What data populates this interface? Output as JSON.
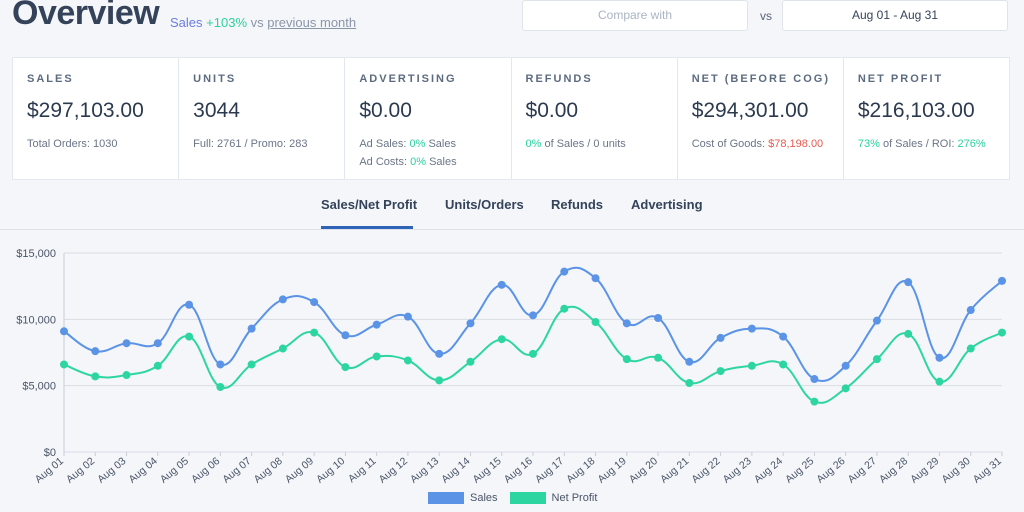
{
  "header": {
    "title": "Overview",
    "subtitle_label": "Sales",
    "subtitle_change": "+103%",
    "subtitle_vs": "vs",
    "subtitle_period": "previous month",
    "compare_placeholder": "Compare with",
    "vs_label": "vs",
    "date_range": "Aug 01 - Aug 31"
  },
  "cards": {
    "sales": {
      "label": "SALES",
      "value": "$297,103.00",
      "detail": "Total Orders: 1030"
    },
    "units": {
      "label": "UNITS",
      "value": "3044",
      "detail": "Full: 2761 / Promo: 283"
    },
    "advertising": {
      "label": "ADVERTISING",
      "value": "$0.00",
      "ad_sales_prefix": "Ad Sales:",
      "ad_sales_pct": "0%",
      "ad_sales_suffix": "Sales",
      "ad_costs_prefix": "Ad Costs:",
      "ad_costs_pct": "0%",
      "ad_costs_suffix": "Sales"
    },
    "refunds": {
      "label": "REFUNDS",
      "value": "$0.00",
      "pct": "0%",
      "detail_suffix": "of Sales / 0 units"
    },
    "net": {
      "label": "NET (BEFORE COG)",
      "value": "$294,301.00",
      "cog_prefix": "Cost of Goods:",
      "cog_value": "$78,198.00"
    },
    "profit": {
      "label": "NET PROFIT",
      "value": "$216,103.00",
      "pct": "73%",
      "mid": "of Sales / ROI:",
      "roi": "276%"
    }
  },
  "tabs": [
    "Sales/Net Profit",
    "Units/Orders",
    "Refunds",
    "Advertising"
  ],
  "active_tab": 0,
  "colors": {
    "sales": "#5b93e6",
    "profit": "#2dd6a0",
    "accent": "#2f63b8"
  },
  "chart_data": {
    "type": "line",
    "x": [
      "Aug 01",
      "Aug 02",
      "Aug 03",
      "Aug 04",
      "Aug 05",
      "Aug 06",
      "Aug 07",
      "Aug 08",
      "Aug 09",
      "Aug 10",
      "Aug 11",
      "Aug 12",
      "Aug 13",
      "Aug 14",
      "Aug 15",
      "Aug 16",
      "Aug 17",
      "Aug 18",
      "Aug 19",
      "Aug 20",
      "Aug 21",
      "Aug 22",
      "Aug 23",
      "Aug 24",
      "Aug 25",
      "Aug 26",
      "Aug 27",
      "Aug 28",
      "Aug 29",
      "Aug 30",
      "Aug 31"
    ],
    "series": [
      {
        "name": "Sales",
        "values": [
          9100,
          7600,
          8200,
          8200,
          11100,
          6600,
          9300,
          11500,
          11300,
          8800,
          9600,
          10200,
          7400,
          9700,
          12600,
          10300,
          13600,
          13100,
          9700,
          10100,
          6800,
          8600,
          9300,
          8700,
          5500,
          6500,
          9900,
          12800,
          7100,
          10700,
          12900
        ]
      },
      {
        "name": "Net Profit",
        "values": [
          6600,
          5700,
          5800,
          6500,
          8700,
          4900,
          6600,
          7800,
          9000,
          6400,
          7200,
          6900,
          5400,
          6800,
          8500,
          7400,
          10800,
          9800,
          7000,
          7100,
          5200,
          6100,
          6500,
          6600,
          3800,
          4800,
          7000,
          8900,
          5300,
          7800,
          9000
        ]
      }
    ],
    "yticks": [
      "$15,000",
      "$10,000",
      "$5,000",
      "$0"
    ],
    "ylim": [
      0,
      15000
    ],
    "grid": true,
    "legend": "bottom-center"
  }
}
